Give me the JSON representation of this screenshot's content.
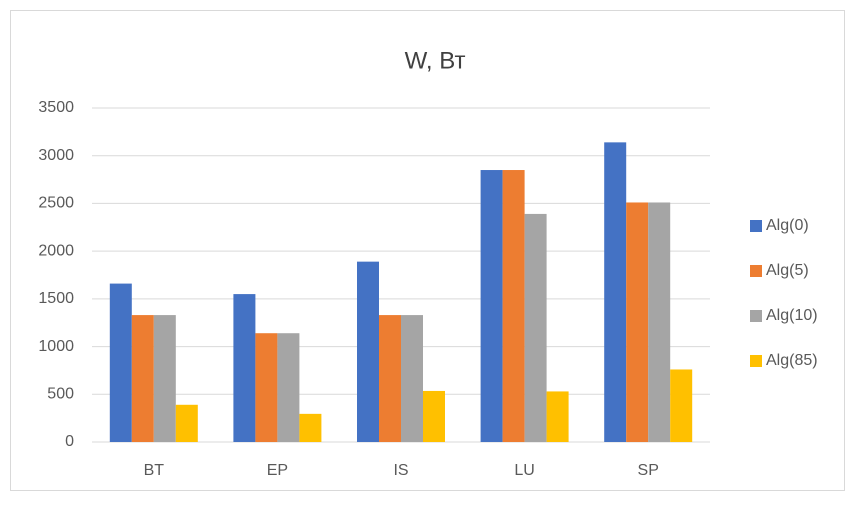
{
  "chart_data": {
    "type": "bar",
    "title": "W, Вт",
    "categories": [
      "BT",
      "EP",
      "IS",
      "LU",
      "SP"
    ],
    "series": [
      {
        "name": "Alg(0)",
        "color": "#4472c4",
        "values": [
          1660,
          1550,
          1890,
          2850,
          3140
        ]
      },
      {
        "name": "Alg(5)",
        "color": "#ed7d31",
        "values": [
          1330,
          1140,
          1330,
          2850,
          2510
        ]
      },
      {
        "name": "Alg(10)",
        "color": "#a5a5a5",
        "values": [
          1330,
          1140,
          1330,
          2390,
          2510
        ]
      },
      {
        "name": "Alg(85)",
        "color": "#ffc000",
        "values": [
          390,
          295,
          535,
          530,
          760
        ]
      }
    ],
    "ylim": [
      0,
      3500
    ],
    "yticks": [
      0,
      500,
      1000,
      1500,
      2000,
      2500,
      3000,
      3500
    ],
    "grid": true,
    "legend": "right"
  }
}
